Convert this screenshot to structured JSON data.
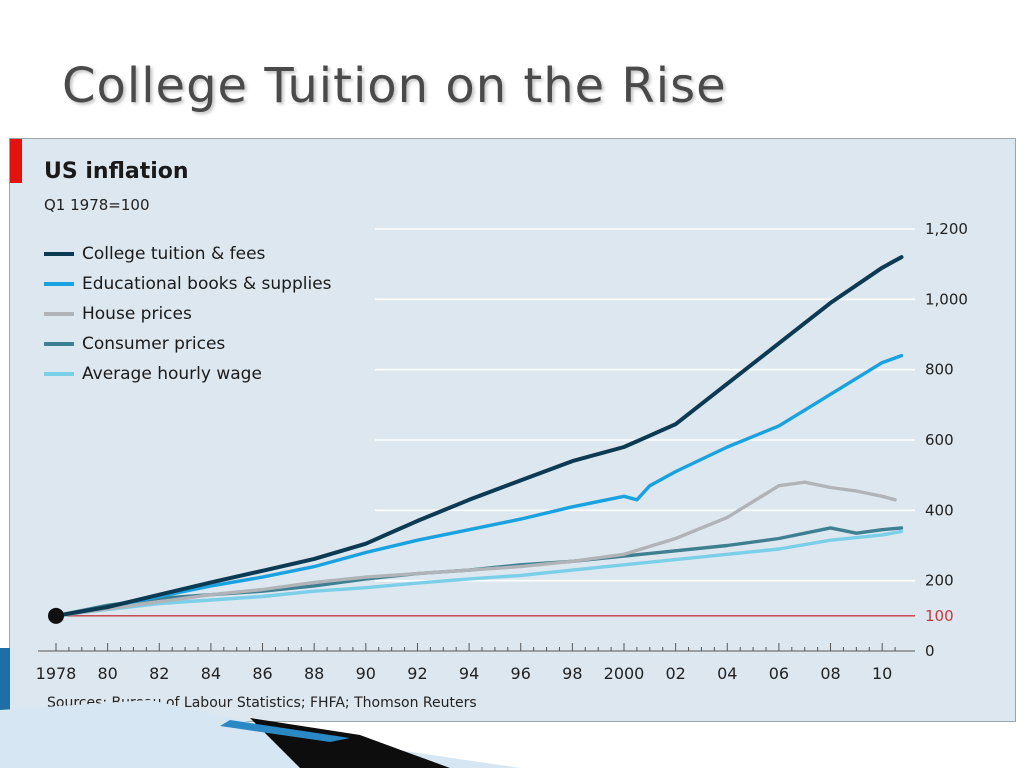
{
  "slide": {
    "title": "College Tuition on the Rise"
  },
  "colors": {
    "panel_bg": "#dde7ef",
    "accent_red": "#e3120b",
    "gridline": "#ffffff",
    "reference_line": "#c8393e"
  },
  "chart_data": {
    "type": "line",
    "title": "US inflation",
    "subtitle": "Q1 1978=100",
    "source_note": "Sources: Bureau of Labour Statistics; FHFA; Thomson Reuters",
    "xlim": [
      1978,
      2011
    ],
    "ylim": [
      0,
      1200
    ],
    "yticks": [
      0,
      200,
      400,
      600,
      800,
      1000,
      1200
    ],
    "ytick_labels": [
      "0",
      "200",
      "400",
      "600",
      "800",
      "1,000",
      "1,200"
    ],
    "reference_line": {
      "value": 100,
      "label": "100"
    },
    "xticks": [
      1978,
      1980,
      1982,
      1984,
      1986,
      1988,
      1990,
      1992,
      1994,
      1996,
      1998,
      2000,
      2002,
      2004,
      2006,
      2008,
      2010
    ],
    "xtick_labels": [
      "1978",
      "80",
      "82",
      "84",
      "86",
      "88",
      "90",
      "92",
      "94",
      "96",
      "98",
      "2000",
      "02",
      "04",
      "06",
      "08",
      "10"
    ],
    "grid": "horizontal",
    "legend_position": "top-left",
    "start_marker": {
      "x": 1978,
      "y": 100
    },
    "series": [
      {
        "name": "College tuition & fees",
        "color": "#0b3a52",
        "x": [
          1978,
          1980,
          1982,
          1984,
          1986,
          1988,
          1990,
          1992,
          1994,
          1996,
          1998,
          2000,
          2002,
          2004,
          2006,
          2008,
          2010,
          2010.75
        ],
        "values": [
          100,
          125,
          160,
          195,
          228,
          262,
          305,
          370,
          430,
          485,
          540,
          580,
          645,
          760,
          875,
          990,
          1090,
          1120
        ]
      },
      {
        "name": "Educational books & supplies",
        "color": "#1aa1e0",
        "x": [
          1978,
          1980,
          1982,
          1984,
          1986,
          1988,
          1990,
          1992,
          1994,
          1996,
          1998,
          2000,
          2000.5,
          2001,
          2002,
          2004,
          2006,
          2008,
          2010,
          2010.75
        ],
        "values": [
          100,
          125,
          155,
          185,
          210,
          240,
          280,
          315,
          345,
          375,
          410,
          440,
          430,
          470,
          510,
          580,
          640,
          730,
          820,
          840
        ]
      },
      {
        "name": "House prices",
        "color": "#b0b4b8",
        "x": [
          1978,
          1980,
          1982,
          1984,
          1986,
          1988,
          1990,
          1992,
          1994,
          1996,
          1998,
          2000,
          2002,
          2004,
          2006,
          2007,
          2008,
          2009,
          2010,
          2010.5
        ],
        "values": [
          100,
          120,
          140,
          160,
          175,
          195,
          210,
          220,
          230,
          240,
          255,
          275,
          320,
          380,
          470,
          480,
          465,
          455,
          440,
          430
        ]
      },
      {
        "name": "Consumer prices",
        "color": "#3e7f91",
        "x": [
          1978,
          1980,
          1982,
          1984,
          1986,
          1988,
          1990,
          1992,
          1994,
          1996,
          1998,
          2000,
          2002,
          2004,
          2006,
          2008,
          2009,
          2010,
          2010.75
        ],
        "values": [
          100,
          130,
          150,
          160,
          170,
          185,
          205,
          220,
          230,
          245,
          255,
          270,
          285,
          300,
          320,
          350,
          335,
          345,
          350
        ]
      },
      {
        "name": "Average hourly wage",
        "color": "#7ccfe9",
        "x": [
          1978,
          1980,
          1982,
          1984,
          1986,
          1988,
          1990,
          1992,
          1994,
          1996,
          1998,
          2000,
          2002,
          2004,
          2006,
          2008,
          2010,
          2010.75
        ],
        "values": [
          100,
          118,
          135,
          145,
          155,
          170,
          180,
          193,
          205,
          215,
          230,
          245,
          260,
          275,
          290,
          315,
          330,
          340
        ]
      }
    ]
  }
}
